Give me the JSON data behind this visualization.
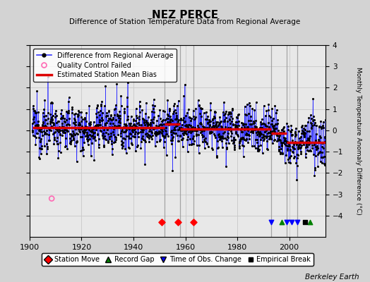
{
  "title": "NEZ PERCE",
  "subtitle": "Difference of Station Temperature Data from Regional Average",
  "ylabel": "Monthly Temperature Anomaly Difference (°C)",
  "credit": "Berkeley Earth",
  "xlim": [
    1900,
    2014
  ],
  "ylim": [
    -5,
    4
  ],
  "yticks": [
    -4,
    -3,
    -2,
    -1,
    0,
    1,
    2,
    3,
    4
  ],
  "xticks": [
    1900,
    1920,
    1940,
    1960,
    1980,
    2000
  ],
  "background_color": "#d3d3d3",
  "plot_bg_color": "#e8e8e8",
  "grid_color": "#c8c8c8",
  "random_seed": 12345,
  "n_points": 1356,
  "year_start": 1901.0,
  "year_end": 2013.9,
  "bias_segments": [
    {
      "x_start": 1901.0,
      "x_end": 1952.0,
      "bias": 0.12
    },
    {
      "x_start": 1952.0,
      "x_end": 1958.0,
      "bias": 0.3
    },
    {
      "x_start": 1958.0,
      "x_end": 1993.0,
      "bias": 0.05
    },
    {
      "x_start": 1993.0,
      "x_end": 1999.0,
      "bias": -0.15
    },
    {
      "x_start": 1999.0,
      "x_end": 2013.9,
      "bias": -0.55
    }
  ],
  "vertical_lines": [
    1952,
    1958,
    1963,
    1993,
    1999,
    2003
  ],
  "station_moves": [
    1951,
    1957,
    1963
  ],
  "record_gaps": [
    1997,
    2008
  ],
  "obs_changes": [
    1993,
    1999,
    2001,
    2003
  ],
  "empirical_breaks": [
    2006
  ],
  "qc_failed_x": 1908.5,
  "qc_failed_y": -3.2,
  "line_color": "#3333ff",
  "dot_color": "#000000",
  "bias_color": "#dd0000",
  "vline_color": "#999999",
  "qc_color": "#ff69b4",
  "marker_y": -4.3
}
